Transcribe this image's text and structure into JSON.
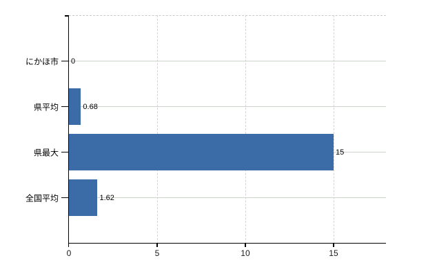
{
  "chart_data": {
    "type": "bar",
    "orientation": "horizontal",
    "title": "",
    "xlabel": "",
    "ylabel": "",
    "categories": [
      "にかほ市",
      "県平均",
      "県最大",
      "全国平均"
    ],
    "values": [
      0,
      0.68,
      15,
      1.62
    ],
    "value_labels": [
      "0",
      "0.68",
      "15",
      "1.62"
    ],
    "x_ticks": [
      0,
      5,
      10,
      15
    ],
    "x_tick_labels": [
      "0",
      "5",
      "10",
      "15"
    ],
    "xlim": [
      0,
      17.97
    ],
    "grid": "on",
    "legend": "none",
    "colors": {
      "bar": "#3c6ca7",
      "h_gridline": "#ccd3ca",
      "v_gridline": "#d5d2d5",
      "top_border": "#c9c9c9",
      "axis": "#000000",
      "category_text": "#000000",
      "value_text": "#000000",
      "tick_text": "#1a1a1a",
      "background": "#ffffff"
    }
  }
}
